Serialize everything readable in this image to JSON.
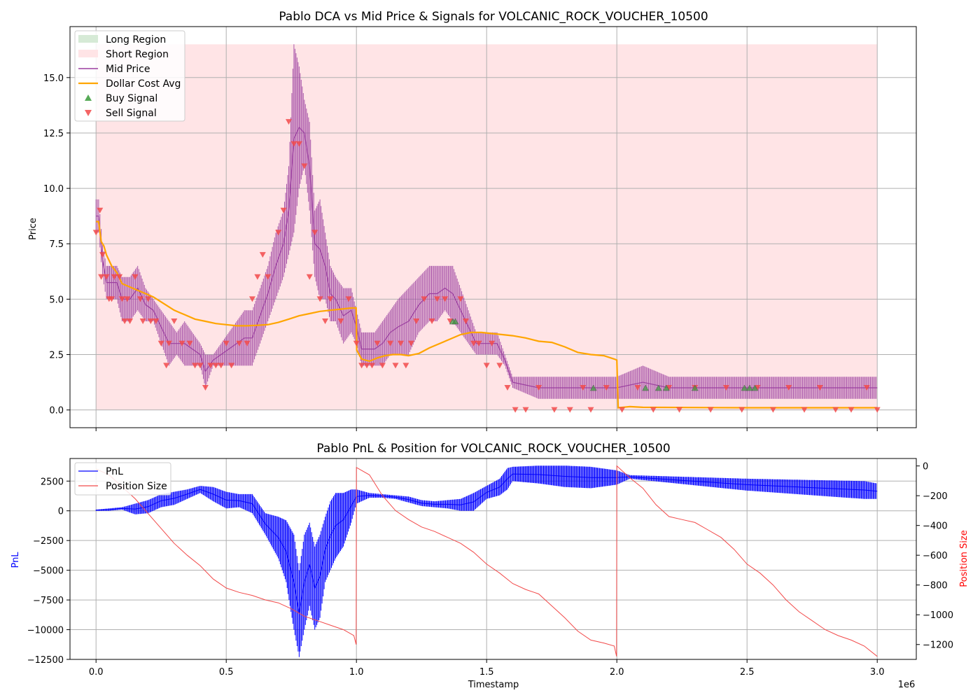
{
  "chart_data": [
    {
      "type": "line",
      "title": "Pablo DCA vs Mid Price & Signals for VOLCANIC_ROCK_VOUCHER_10500",
      "xlabel": "",
      "ylabel": "Price",
      "xlim": [
        -100000,
        3150000
      ],
      "ylim": [
        -0.8,
        17.3
      ],
      "xticks": [
        0,
        500000,
        1000000,
        1500000,
        2000000,
        2500000,
        3000000
      ],
      "yticks": [
        0.0,
        2.5,
        5.0,
        7.5,
        10.0,
        12.5,
        15.0
      ],
      "ytick_labels": [
        "0.0",
        "2.5",
        "5.0",
        "7.5",
        "10.0",
        "12.5",
        "15.0"
      ],
      "grid": true,
      "legend_position": "top-left",
      "legend": [
        {
          "label": "Long Region",
          "kind": "patch",
          "color": "#d6ead6"
        },
        {
          "label": "Short Region",
          "kind": "patch",
          "color": "#ffe4e6"
        },
        {
          "label": "Mid Price",
          "kind": "line",
          "color": "#9b3fa0"
        },
        {
          "label": "Dollar Cost Avg",
          "kind": "line",
          "color": "#ffa500"
        },
        {
          "label": "Buy Signal",
          "kind": "marker-up",
          "color": "#3a9b3a"
        },
        {
          "label": "Sell Signal",
          "kind": "marker-down",
          "color": "#f24a4a"
        }
      ],
      "short_region": {
        "x": [
          0,
          3000000
        ],
        "y": [
          0,
          16.5
        ]
      },
      "mid_price": {
        "x": [
          0,
          10000,
          25000,
          40000,
          60000,
          80000,
          100000,
          130000,
          160000,
          190000,
          220000,
          250000,
          280000,
          310000,
          340000,
          370000,
          400000,
          420000,
          450000,
          480000,
          510000,
          540000,
          570000,
          600000,
          630000,
          660000,
          690000,
          720000,
          740000,
          760000,
          780000,
          800000,
          820000,
          840000,
          860000,
          880000,
          900000,
          920000,
          950000,
          980000,
          1000000,
          1020000,
          1040000,
          1070000,
          1100000,
          1130000,
          1160000,
          1200000,
          1240000,
          1280000,
          1310000,
          1340000,
          1370000,
          1400000,
          1430000,
          1460000,
          1500000,
          1540000,
          1570000,
          1600000,
          1700000,
          1800000,
          1900000,
          2000000,
          2100000,
          2200000,
          2300000,
          2400000,
          2500000,
          2600000,
          2700000,
          2800000,
          2900000,
          3000000
        ],
        "low": [
          8.0,
          8.0,
          6.0,
          5.0,
          5.0,
          5.0,
          4.0,
          4.0,
          4.5,
          4.0,
          4.0,
          3.0,
          2.0,
          2.5,
          2.0,
          2.0,
          2.0,
          1.0,
          2.0,
          2.0,
          2.0,
          2.0,
          2.0,
          2.0,
          3.0,
          4.0,
          5.0,
          6.0,
          7.0,
          8.0,
          10.0,
          11.0,
          9.0,
          6.0,
          5.0,
          5.0,
          4.0,
          4.0,
          3.0,
          3.5,
          3.0,
          2.0,
          2.0,
          2.0,
          2.0,
          2.5,
          2.5,
          2.5,
          3.5,
          4.0,
          4.0,
          4.5,
          4.0,
          3.5,
          3.0,
          2.5,
          2.5,
          2.5,
          2.0,
          1.0,
          0.5,
          0.5,
          0.5,
          0.5,
          0.5,
          0.5,
          0.5,
          0.5,
          0.5,
          0.5,
          0.5,
          0.5,
          0.5,
          0.5
        ],
        "high": [
          9.5,
          9.5,
          7.5,
          6.5,
          6.5,
          6.5,
          6.0,
          6.0,
          6.5,
          5.5,
          5.0,
          4.5,
          4.0,
          3.5,
          4.0,
          3.5,
          3.0,
          2.5,
          2.5,
          3.0,
          3.5,
          4.0,
          4.5,
          4.5,
          5.5,
          6.5,
          8.0,
          9.0,
          11.0,
          16.5,
          15.5,
          14.0,
          13.0,
          9.0,
          9.5,
          8.0,
          6.5,
          6.0,
          5.5,
          5.5,
          4.5,
          3.5,
          3.5,
          3.5,
          4.0,
          4.5,
          5.0,
          5.5,
          6.0,
          6.5,
          6.5,
          6.5,
          6.5,
          5.5,
          4.5,
          3.5,
          3.5,
          3.5,
          2.5,
          1.5,
          1.5,
          1.5,
          1.5,
          1.5,
          2.0,
          1.5,
          1.5,
          1.5,
          1.5,
          1.5,
          1.5,
          1.5,
          1.5,
          1.5
        ]
      },
      "dollar_cost_avg": {
        "x": [
          0,
          10000,
          20000,
          30000,
          40000,
          60000,
          80000,
          100000,
          140000,
          180000,
          220000,
          260000,
          300000,
          340000,
          380000,
          420000,
          460000,
          500000,
          540000,
          580000,
          620000,
          660000,
          700000,
          740000,
          780000,
          820000,
          860000,
          900000,
          940000,
          980000,
          999000,
          1001000,
          1020000,
          1050000,
          1080000,
          1110000,
          1140000,
          1170000,
          1200000,
          1240000,
          1280000,
          1320000,
          1360000,
          1400000,
          1440000,
          1480000,
          1520000,
          1560000,
          1600000,
          1650000,
          1700000,
          1750000,
          1800000,
          1850000,
          1900000,
          1950000,
          1990000,
          2000000,
          2005000,
          2050000,
          2100000,
          2500000,
          3000000
        ],
        "y": [
          8.5,
          8.5,
          7.6,
          7.4,
          7.0,
          6.5,
          6.2,
          5.7,
          5.5,
          5.3,
          5.1,
          4.8,
          4.5,
          4.3,
          4.1,
          4.0,
          3.9,
          3.85,
          3.8,
          3.8,
          3.82,
          3.85,
          3.95,
          4.1,
          4.25,
          4.35,
          4.45,
          4.5,
          4.55,
          4.6,
          4.6,
          2.7,
          2.3,
          2.2,
          2.35,
          2.45,
          2.5,
          2.5,
          2.45,
          2.55,
          2.8,
          3.0,
          3.2,
          3.4,
          3.5,
          3.5,
          3.45,
          3.4,
          3.35,
          3.25,
          3.1,
          3.05,
          2.85,
          2.6,
          2.5,
          2.45,
          2.3,
          2.25,
          0.1,
          0.15,
          0.12,
          0.1,
          0.1
        ]
      },
      "buy_signals": {
        "x": [
          1370000,
          1380000,
          1910000,
          2110000,
          2160000,
          2190000,
          2300000,
          2490000,
          2510000,
          2530000
        ],
        "y": [
          4.0,
          4.0,
          1.0,
          1.0,
          1.0,
          1.0,
          1.0,
          1.0,
          1.0,
          1.0
        ]
      },
      "sell_signals": {
        "x": [
          0,
          15000,
          20000,
          25000,
          40000,
          50000,
          60000,
          70000,
          90000,
          100000,
          110000,
          120000,
          130000,
          150000,
          170000,
          180000,
          200000,
          210000,
          230000,
          250000,
          270000,
          280000,
          300000,
          330000,
          360000,
          380000,
          400000,
          420000,
          440000,
          460000,
          480000,
          500000,
          520000,
          550000,
          580000,
          600000,
          620000,
          640000,
          660000,
          700000,
          720000,
          740000,
          760000,
          780000,
          800000,
          820000,
          840000,
          860000,
          880000,
          900000,
          940000,
          970000,
          1000000,
          1020000,
          1040000,
          1060000,
          1080000,
          1100000,
          1130000,
          1150000,
          1170000,
          1190000,
          1210000,
          1230000,
          1260000,
          1290000,
          1310000,
          1340000,
          1360000,
          1400000,
          1420000,
          1450000,
          1470000,
          1500000,
          1520000,
          1550000,
          1580000,
          1610000,
          1650000,
          1700000,
          1760000,
          1820000,
          1870000,
          1900000,
          1960000,
          2020000,
          2080000,
          2140000,
          2200000,
          2240000,
          2300000,
          2360000,
          2420000,
          2480000,
          2540000,
          2600000,
          2660000,
          2720000,
          2780000,
          2840000,
          2900000,
          2960000,
          3000000
        ],
        "y": [
          8.0,
          9.0,
          6.0,
          7.0,
          6.0,
          5.0,
          5.0,
          6.0,
          6.0,
          5.0,
          4.0,
          5.0,
          4.0,
          6.0,
          5.0,
          4.0,
          5.0,
          4.0,
          4.0,
          3.0,
          2.0,
          3.0,
          4.0,
          3.0,
          3.0,
          2.0,
          2.0,
          1.0,
          2.0,
          2.0,
          2.0,
          3.0,
          2.0,
          3.0,
          3.0,
          5.0,
          6.0,
          7.0,
          6.0,
          8.0,
          9.0,
          13.0,
          12.0,
          12.0,
          11.0,
          6.0,
          8.0,
          5.0,
          4.0,
          5.0,
          4.0,
          5.0,
          3.0,
          2.0,
          2.0,
          2.0,
          3.0,
          2.0,
          3.0,
          2.0,
          3.0,
          2.0,
          3.0,
          4.0,
          5.0,
          4.0,
          5.0,
          5.0,
          4.0,
          5.0,
          4.0,
          3.0,
          3.0,
          2.0,
          3.0,
          2.0,
          1.0,
          0.0,
          0.0,
          1.0,
          0.0,
          0.0,
          1.0,
          0.0,
          1.0,
          0.0,
          1.0,
          0.0,
          1.0,
          0.0,
          1.0,
          0.0,
          1.0,
          0.0,
          1.0,
          0.0,
          1.0,
          0.0,
          1.0,
          0.0,
          0.0,
          1.0,
          0.0
        ]
      }
    },
    {
      "type": "line",
      "title": "Pablo PnL & Position for VOLCANIC_ROCK_VOUCHER_10500",
      "xlabel": "Timestamp",
      "ylabel": "PnL",
      "y2label": "Position Size",
      "x_offset_label": "1e6",
      "xlim": [
        -100000,
        3150000
      ],
      "ylim": [
        -12500,
        4400
      ],
      "y2lim": [
        -1300,
        50
      ],
      "xticks": [
        0,
        500000,
        1000000,
        1500000,
        2000000,
        2500000,
        3000000
      ],
      "xtick_labels": [
        "0.0",
        "0.5",
        "1.0",
        "1.5",
        "2.0",
        "2.5",
        "3.0"
      ],
      "yticks": [
        -12500,
        -10000,
        -7500,
        -5000,
        -2500,
        0,
        2500
      ],
      "ytick_labels": [
        "−12500",
        "−10000",
        "−7500",
        "−5000",
        "−2500",
        "0",
        "2500"
      ],
      "y2ticks": [
        0,
        -200,
        -400,
        -600,
        -800,
        -1000,
        -1200
      ],
      "y2tick_labels": [
        "0",
        "−200",
        "−400",
        "−600",
        "−800",
        "−1000",
        "−1200"
      ],
      "grid": true,
      "legend_position": "top-left",
      "legend": [
        {
          "label": "PnL",
          "kind": "line",
          "color": "#0000ff"
        },
        {
          "label": "Position Size",
          "kind": "line",
          "color": "#f24a4a"
        }
      ],
      "pnl": {
        "x": [
          0,
          50000,
          100000,
          150000,
          200000,
          250000,
          300000,
          350000,
          400000,
          450000,
          500000,
          550000,
          600000,
          650000,
          700000,
          730000,
          760000,
          780000,
          800000,
          820000,
          840000,
          860000,
          880000,
          900000,
          920000,
          950000,
          980000,
          1000000,
          1050000,
          1100000,
          1150000,
          1200000,
          1250000,
          1300000,
          1350000,
          1400000,
          1450000,
          1500000,
          1550000,
          1580000,
          1600000,
          1700000,
          1800000,
          1900000,
          2000000,
          2050000,
          2500000,
          2950000,
          3000000
        ],
        "low": [
          0,
          0,
          100,
          -300,
          -200,
          300,
          500,
          1000,
          1500,
          800,
          200,
          300,
          -200,
          -2000,
          -4000,
          -6000,
          -10000,
          -12300,
          -10000,
          -8000,
          -10000,
          -9000,
          -6000,
          -5000,
          -4000,
          -3000,
          -1000,
          600,
          1100,
          1100,
          1000,
          700,
          400,
          300,
          200,
          0,
          0,
          1000,
          1300,
          1800,
          2500,
          2300,
          2000,
          1900,
          2200,
          2700,
          1700,
          1000,
          1000
        ],
        "high": [
          100,
          200,
          300,
          600,
          900,
          1400,
          1600,
          1800,
          2100,
          2000,
          1600,
          1400,
          1400,
          -200,
          -500,
          -800,
          -2000,
          -5000,
          -2000,
          -1000,
          -3000,
          -2000,
          -500,
          800,
          1500,
          1500,
          1800,
          1800,
          1500,
          1400,
          1300,
          1200,
          900,
          800,
          900,
          1000,
          1500,
          2100,
          2700,
          3600,
          3700,
          3800,
          3800,
          3700,
          3400,
          3000,
          2700,
          2500,
          2300
        ]
      },
      "position_size": {
        "x": [
          0,
          50000,
          100000,
          150000,
          200000,
          250000,
          300000,
          350000,
          400000,
          450000,
          500000,
          550000,
          600000,
          650000,
          700000,
          750000,
          800000,
          850000,
          900000,
          950000,
          990000,
          999000,
          1000000,
          1050000,
          1100000,
          1150000,
          1200000,
          1250000,
          1300000,
          1350000,
          1400000,
          1450000,
          1500000,
          1550000,
          1600000,
          1650000,
          1700000,
          1750000,
          1800000,
          1850000,
          1900000,
          1950000,
          1990000,
          1999000,
          2000000,
          2050000,
          2100000,
          2150000,
          2200000,
          2250000,
          2300000,
          2350000,
          2400000,
          2450000,
          2500000,
          2550000,
          2600000,
          2650000,
          2700000,
          2750000,
          2800000,
          2850000,
          2900000,
          2950000,
          3000000
        ],
        "y": [
          -20,
          -60,
          -140,
          -220,
          -320,
          -420,
          -520,
          -600,
          -670,
          -760,
          -820,
          -850,
          -870,
          -900,
          -920,
          -960,
          -1010,
          -1040,
          -1070,
          -1100,
          -1140,
          -1200,
          -10,
          -60,
          -200,
          -300,
          -360,
          -410,
          -440,
          -480,
          -520,
          -580,
          -660,
          -720,
          -790,
          -830,
          -860,
          -940,
          -1020,
          -1110,
          -1170,
          -1190,
          -1210,
          -1280,
          0,
          -80,
          -150,
          -260,
          -340,
          -360,
          -380,
          -430,
          -480,
          -560,
          -660,
          -720,
          -800,
          -900,
          -980,
          -1040,
          -1100,
          -1140,
          -1170,
          -1210,
          -1280
        ]
      }
    }
  ]
}
